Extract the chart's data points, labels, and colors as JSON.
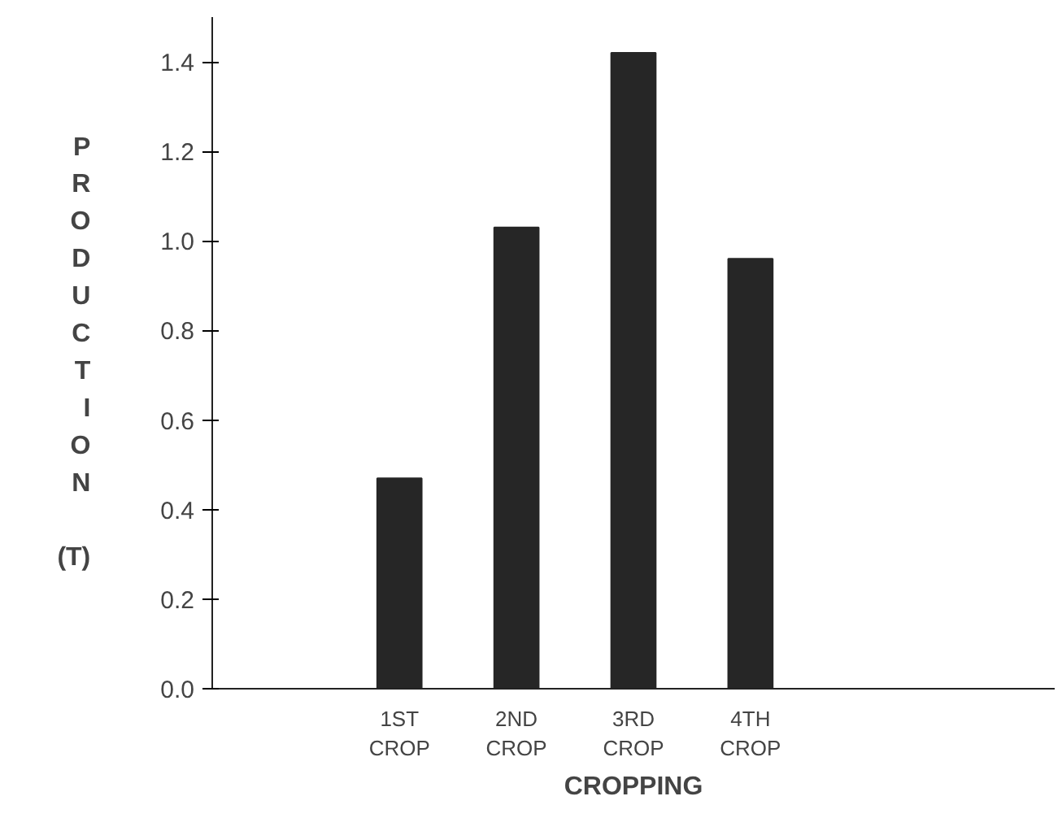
{
  "chart_data": {
    "type": "bar",
    "xlabel": "CROPPING",
    "ylabel": "PRODUCTION (T)",
    "categories": [
      null,
      "1ST\nCROP",
      "2ND\nCROP",
      "3RD\nCROP",
      "4TH\nCROP",
      null,
      null
    ],
    "values": [
      null,
      0.47,
      1.03,
      1.42,
      0.96,
      null,
      null
    ],
    "color": "#262626",
    "ylim": [
      0,
      1.5
    ],
    "yticks": [
      {
        "value": 0,
        "label": "0.0"
      },
      0.2,
      0.4,
      0.6,
      0.8,
      {
        "value": 1,
        "label": "1.0"
      },
      1.2,
      1.4
    ],
    "grid": false
  }
}
